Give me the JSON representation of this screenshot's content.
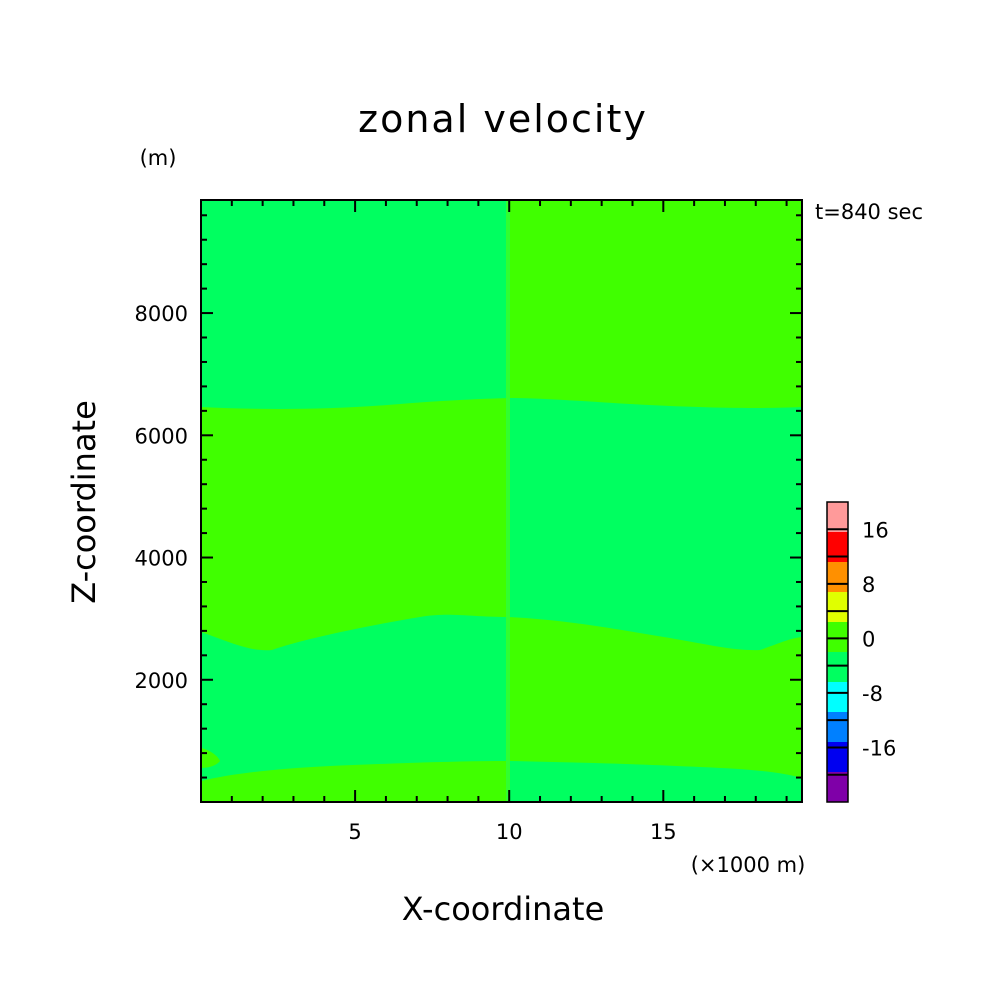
{
  "chart_data": {
    "type": "heatmap",
    "title": "zonal velocity",
    "xlabel": "X-coordinate",
    "ylabel": "Z-coordinate",
    "x_unit_label": "(×1000 m)",
    "y_unit_label": "(m)",
    "time_label": "t=840 sec",
    "xlim": [
      0,
      19.5
    ],
    "ylim": [
      0,
      9850
    ],
    "x_ticks": [
      5,
      10,
      15
    ],
    "y_ticks": [
      2000,
      4000,
      6000,
      8000
    ],
    "colorbar": {
      "levels": [
        -24,
        -20,
        -16,
        -12,
        -8,
        -4,
        0,
        4,
        8,
        12,
        16,
        20
      ],
      "colors": [
        "#7f00a8",
        "#0000f0",
        "#0080ff",
        "#00ffff",
        "#00ff60",
        "#40ff00",
        "#e0ff00",
        "#ff9000",
        "#ff0000",
        "#ff9a9a"
      ],
      "labeled_ticks": [
        -16,
        -8,
        0,
        8,
        16
      ]
    },
    "regions": [
      {
        "band": "z 6600-9850, x 0-10",
        "color": "#00ff60"
      },
      {
        "band": "z 6600-9850, x 10-19.5",
        "color": "#40ff00"
      },
      {
        "band": "z 2700-6600, x 0-10",
        "color": "#40ff00"
      },
      {
        "band": "z 2700-6600, x 10-19.5",
        "color": "#00ff60"
      },
      {
        "band": "z 600-2700, x 0-10",
        "color": "#00ff60"
      },
      {
        "band": "z 600-2700, x 10-19.5",
        "color": "#40ff00"
      },
      {
        "band": "z 0-600, x 0-10",
        "color": "#40ff00"
      },
      {
        "band": "z 0-600, x 10-19.5",
        "color": "#00ff60"
      }
    ]
  }
}
